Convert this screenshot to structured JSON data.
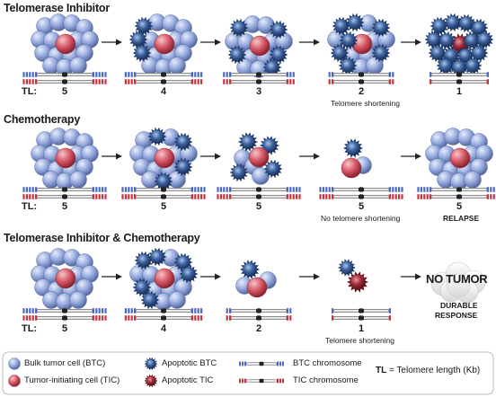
{
  "rows": [
    {
      "title": "Telomerase Inhibitor",
      "tl_label": "TL:",
      "values": [
        "5",
        "4",
        "3",
        "2",
        "1"
      ],
      "notes": [
        "",
        "",
        "",
        "Telomere shortening",
        ""
      ]
    },
    {
      "title": "Chemotherapy",
      "tl_label": "TL:",
      "values": [
        "5",
        "5",
        "5",
        "5",
        "5"
      ],
      "notes": [
        "",
        "",
        "",
        "No  telomere shortening",
        "RELAPSE"
      ]
    },
    {
      "title": "Telomerase Inhibitor & Chemotherapy",
      "tl_label": "TL:",
      "values": [
        "5",
        "4",
        "2",
        "1"
      ],
      "notes": [
        "",
        "",
        "",
        "Telomere shortening"
      ]
    }
  ],
  "outcome": {
    "no_tumor": "NO TUMOR",
    "durable_line1": "DURABLE",
    "durable_line2": "RESPONSE"
  },
  "legend": {
    "btc": "Bulk tumor cell (BTC)",
    "tic": "Tumor-initiating cell (TIC)",
    "apoptotic_btc": "Apoptotic BTC",
    "apoptotic_tic": "Apoptotic TIC",
    "btc_chromosome": "BTC chromosome",
    "tic_chromosome": "TIC chromosome",
    "tl_abbr": "TL",
    "tl_def": " = Telomere length (Kb)"
  },
  "colors": {
    "btc": "#8fa6dc",
    "tic": "#d24d5c",
    "apoptotic_btc": "#2c4d86",
    "apoptotic_tic": "#8e1f2c",
    "btc_telomere": "#4a67c4",
    "tic_telomere": "#c8333f"
  }
}
